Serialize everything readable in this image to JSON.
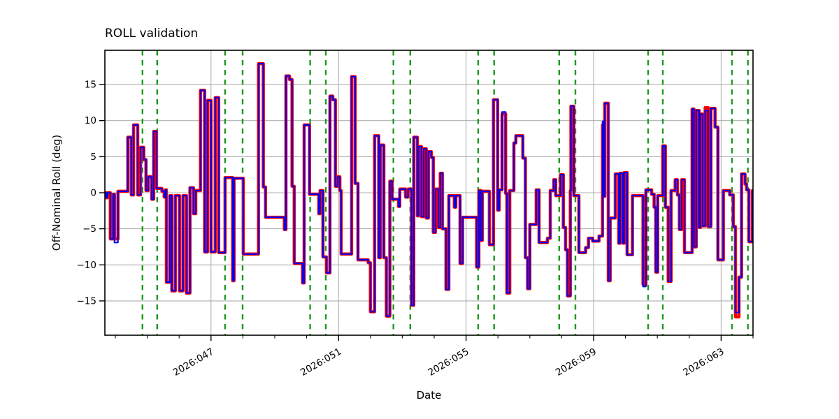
{
  "figure": {
    "background": "#ffffff"
  },
  "chart_data": {
    "type": "line",
    "title": "ROLL validation",
    "xlabel": "Date",
    "ylabel": "Off-Nominal Roll (deg)",
    "x_axis": {
      "range_days": [
        43.67,
        64.0
      ],
      "major_ticks": [
        {
          "day": 47,
          "label": "2026:047"
        },
        {
          "day": 51,
          "label": "2026:051"
        },
        {
          "day": 55,
          "label": "2026:055"
        },
        {
          "day": 59,
          "label": "2026:059"
        },
        {
          "day": 63,
          "label": "2026:063"
        }
      ],
      "minor_tick_days": [
        44,
        45,
        46,
        48,
        49,
        50,
        52,
        53,
        54,
        56,
        57,
        58,
        60,
        61,
        62,
        64
      ]
    },
    "y_axis": {
      "range": [
        -19.75,
        19.75
      ],
      "ticks": [
        {
          "v": -15,
          "label": "−15"
        },
        {
          "v": -10,
          "label": "−10"
        },
        {
          "v": -5,
          "label": "−5"
        },
        {
          "v": 0,
          "label": "0"
        },
        {
          "v": 5,
          "label": "5"
        },
        {
          "v": 10,
          "label": "10"
        },
        {
          "v": 15,
          "label": "15"
        }
      ]
    },
    "grid": {
      "visible": true,
      "color": "#b0b0b0"
    },
    "event_vlines": {
      "color": "#1e9b1e",
      "style": "dashed",
      "days": [
        44.85,
        45.31,
        47.44,
        47.99,
        50.11,
        50.6,
        52.72,
        53.25,
        55.38,
        55.88,
        57.92,
        58.43,
        60.71,
        61.17,
        63.34,
        63.84
      ]
    },
    "series": [
      {
        "name": "red",
        "color": "#ff0000",
        "width": 4.5
      },
      {
        "name": "blue",
        "color": "#0000f0",
        "width": 2.1
      }
    ],
    "step_points": [
      [
        43.67,
        0.0
      ],
      [
        43.71,
        -0.7
      ],
      [
        43.75,
        0.0
      ],
      [
        43.84,
        -6.4
      ],
      [
        43.93,
        -0.2
      ],
      [
        43.97,
        -6.4
      ],
      [
        44.08,
        0.2
      ],
      [
        44.39,
        7.7
      ],
      [
        44.5,
        -0.3
      ],
      [
        44.57,
        9.4
      ],
      [
        44.7,
        -0.3
      ],
      [
        44.79,
        6.3
      ],
      [
        44.89,
        4.6
      ],
      [
        44.96,
        0.3
      ],
      [
        45.03,
        2.2
      ],
      [
        45.14,
        -0.9
      ],
      [
        45.2,
        8.5
      ],
      [
        45.29,
        0.6
      ],
      [
        45.46,
        0.2
      ],
      [
        45.53,
        -0.6
      ],
      [
        45.57,
        0.4
      ],
      [
        45.6,
        -12.4
      ],
      [
        45.71,
        -0.4
      ],
      [
        45.77,
        -13.6
      ],
      [
        45.88,
        -0.4
      ],
      [
        46.01,
        -13.6
      ],
      [
        46.12,
        -0.4
      ],
      [
        46.23,
        -13.9
      ],
      [
        46.34,
        0.7
      ],
      [
        46.45,
        -2.9
      ],
      [
        46.52,
        0.3
      ],
      [
        46.67,
        14.2
      ],
      [
        46.8,
        -8.2
      ],
      [
        46.89,
        12.8
      ],
      [
        47.0,
        -8.2
      ],
      [
        47.13,
        13.2
      ],
      [
        47.24,
        -8.3
      ],
      [
        47.44,
        2.1
      ],
      [
        47.68,
        -12.2
      ],
      [
        47.72,
        2.0
      ],
      [
        48.01,
        -8.5
      ],
      [
        48.49,
        17.9
      ],
      [
        48.64,
        0.8
      ],
      [
        48.71,
        -3.4
      ],
      [
        49.3,
        -5.1
      ],
      [
        49.35,
        16.2
      ],
      [
        49.46,
        15.7
      ],
      [
        49.54,
        0.9
      ],
      [
        49.61,
        -9.8
      ],
      [
        49.87,
        -12.5
      ],
      [
        49.92,
        9.4
      ],
      [
        50.09,
        -0.2
      ],
      [
        50.38,
        -2.9
      ],
      [
        50.42,
        0.3
      ],
      [
        50.51,
        -8.9
      ],
      [
        50.62,
        -11.1
      ],
      [
        50.73,
        13.4
      ],
      [
        50.82,
        12.9
      ],
      [
        50.9,
        0.9
      ],
      [
        50.97,
        2.2
      ],
      [
        51.04,
        0.3
      ],
      [
        51.08,
        -8.5
      ],
      [
        51.41,
        16.1
      ],
      [
        51.52,
        1.3
      ],
      [
        51.61,
        -9.3
      ],
      [
        51.93,
        -9.7
      ],
      [
        52.0,
        -16.5
      ],
      [
        52.13,
        7.9
      ],
      [
        52.26,
        -9.0
      ],
      [
        52.31,
        6.6
      ],
      [
        52.42,
        -9.0
      ],
      [
        52.5,
        -17.1
      ],
      [
        52.61,
        1.6
      ],
      [
        52.68,
        -0.9
      ],
      [
        52.88,
        -1.9
      ],
      [
        52.92,
        0.5
      ],
      [
        53.1,
        -0.6
      ],
      [
        53.18,
        0.5
      ],
      [
        53.29,
        -15.6
      ],
      [
        53.36,
        7.7
      ],
      [
        53.47,
        -3.2
      ],
      [
        53.51,
        6.4
      ],
      [
        53.6,
        -3.3
      ],
      [
        53.67,
        6.1
      ],
      [
        53.75,
        -3.5
      ],
      [
        53.82,
        5.7
      ],
      [
        53.91,
        4.9
      ],
      [
        53.97,
        -5.5
      ],
      [
        54.04,
        0.5
      ],
      [
        54.13,
        -4.8
      ],
      [
        54.19,
        2.7
      ],
      [
        54.26,
        -5.0
      ],
      [
        54.37,
        -13.4
      ],
      [
        54.46,
        -0.4
      ],
      [
        54.63,
        -2.0
      ],
      [
        54.68,
        -0.4
      ],
      [
        54.81,
        -9.8
      ],
      [
        54.89,
        -3.4
      ],
      [
        55.33,
        -10.3
      ],
      [
        55.4,
        0.3
      ],
      [
        55.46,
        -6.6
      ],
      [
        55.51,
        0.2
      ],
      [
        55.73,
        -7.2
      ],
      [
        55.86,
        12.9
      ],
      [
        55.99,
        -2.4
      ],
      [
        56.04,
        0.4
      ],
      [
        56.13,
        10.9
      ],
      [
        56.24,
        -0.1
      ],
      [
        56.28,
        -13.9
      ],
      [
        56.37,
        0.3
      ],
      [
        56.5,
        6.9
      ],
      [
        56.56,
        7.9
      ],
      [
        56.78,
        4.8
      ],
      [
        56.86,
        -9.0
      ],
      [
        56.93,
        -13.3
      ],
      [
        57.0,
        -4.4
      ],
      [
        57.2,
        0.4
      ],
      [
        57.29,
        -6.9
      ],
      [
        57.55,
        -6.3
      ],
      [
        57.64,
        0.3
      ],
      [
        57.75,
        1.8
      ],
      [
        57.81,
        -0.4
      ],
      [
        57.96,
        2.5
      ],
      [
        58.05,
        -4.8
      ],
      [
        58.12,
        -7.9
      ],
      [
        58.18,
        -14.3
      ],
      [
        58.27,
        0.3
      ],
      [
        58.29,
        12.0
      ],
      [
        58.38,
        -0.4
      ],
      [
        58.54,
        -8.3
      ],
      [
        58.75,
        -7.6
      ],
      [
        58.84,
        -6.3
      ],
      [
        58.97,
        -6.7
      ],
      [
        59.17,
        -6.0
      ],
      [
        59.28,
        9.4
      ],
      [
        59.32,
        -0.5
      ],
      [
        59.35,
        12.4
      ],
      [
        59.46,
        -12.2
      ],
      [
        59.52,
        -3.5
      ],
      [
        59.68,
        2.6
      ],
      [
        59.79,
        -7.0
      ],
      [
        59.83,
        2.7
      ],
      [
        59.92,
        -7.0
      ],
      [
        59.96,
        2.8
      ],
      [
        60.05,
        -8.6
      ],
      [
        60.22,
        -0.4
      ],
      [
        60.55,
        -12.7
      ],
      [
        60.64,
        0.4
      ],
      [
        60.82,
        -0.2
      ],
      [
        60.9,
        -2.0
      ],
      [
        60.95,
        -11.0
      ],
      [
        61.01,
        -0.4
      ],
      [
        61.17,
        6.5
      ],
      [
        61.25,
        -2.0
      ],
      [
        61.34,
        -12.3
      ],
      [
        61.43,
        0.3
      ],
      [
        61.56,
        1.8
      ],
      [
        61.63,
        -0.3
      ],
      [
        61.69,
        -5.1
      ],
      [
        61.76,
        1.8
      ],
      [
        61.85,
        -8.3
      ],
      [
        62.09,
        11.6
      ],
      [
        62.15,
        -7.5
      ],
      [
        62.22,
        11.4
      ],
      [
        62.31,
        -4.8
      ],
      [
        62.35,
        10.9
      ],
      [
        62.42,
        -4.6
      ],
      [
        62.5,
        11.8
      ],
      [
        62.59,
        -4.7
      ],
      [
        62.68,
        11.7
      ],
      [
        62.81,
        9.1
      ],
      [
        62.9,
        -9.3
      ],
      [
        63.07,
        0.3
      ],
      [
        63.27,
        -0.3
      ],
      [
        63.38,
        -4.7
      ],
      [
        63.45,
        -17.2
      ],
      [
        63.56,
        -11.7
      ],
      [
        63.64,
        2.6
      ],
      [
        63.75,
        1.2
      ],
      [
        63.8,
        0.4
      ],
      [
        63.87,
        -6.8
      ],
      [
        63.98,
        0.3
      ]
    ],
    "blue_overrides": [
      [
        43.97,
        -6.9
      ],
      [
        56.13,
        11.2
      ],
      [
        59.28,
        9.9
      ],
      [
        60.55,
        -13.0
      ],
      [
        62.5,
        11.4
      ],
      [
        63.45,
        -16.6
      ]
    ]
  }
}
